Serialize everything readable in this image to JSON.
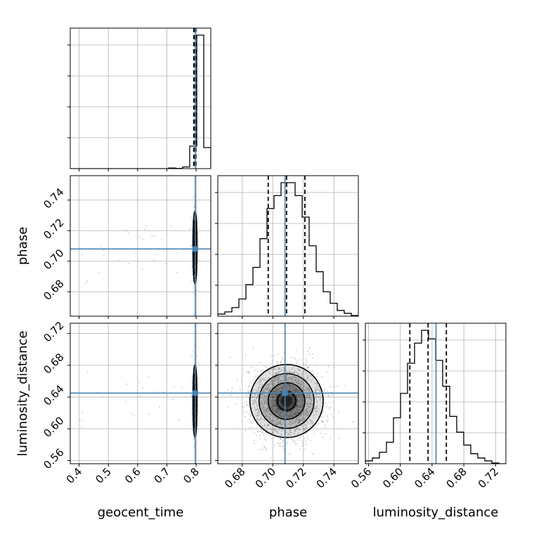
{
  "chart_data": {
    "type": "corner",
    "parameters": [
      "geocent_time",
      "phase",
      "luminosity_distance"
    ],
    "axis_labels": {
      "geocent_time": "geocent_time",
      "phase": "phase",
      "luminosity_distance": "luminosity_distance"
    },
    "ranges": {
      "geocent_time": [
        0.37,
        0.85
      ],
      "phase": [
        0.664,
        0.756
      ],
      "luminosity_distance": [
        0.556,
        0.733
      ]
    },
    "ticks": {
      "geocent_time": [
        0.4,
        0.5,
        0.6,
        0.7,
        0.8
      ],
      "phase": [
        0.68,
        0.7,
        0.72,
        0.74
      ],
      "luminosity_distance": [
        0.56,
        0.6,
        0.64,
        0.68,
        0.72
      ]
    },
    "tick_labels": {
      "geocent_time": [
        "0.4",
        "0.5",
        "0.6",
        "0.7",
        "0.8"
      ],
      "phase": [
        "0.68",
        "0.70",
        "0.72",
        "0.74"
      ],
      "luminosity_distance": [
        "0.56",
        "0.60",
        "0.64",
        "0.68",
        "0.72"
      ]
    },
    "truths": {
      "geocent_time": 0.797,
      "phase": 0.708,
      "luminosity_distance": 0.645
    },
    "quantiles": {
      "geocent_time": [
        0.792,
        0.796,
        0.799
      ],
      "phase": [
        0.697,
        0.709,
        0.721
      ],
      "luminosity_distance": [
        0.612,
        0.635,
        0.658
      ]
    },
    "histograms": {
      "geocent_time": {
        "edges": [
          0.37,
          0.394,
          0.418,
          0.442,
          0.466,
          0.49,
          0.514,
          0.538,
          0.562,
          0.586,
          0.61,
          0.634,
          0.658,
          0.682,
          0.706,
          0.73,
          0.754,
          0.778,
          0.802,
          0.826,
          0.85
        ],
        "counts": [
          0,
          0,
          0,
          0,
          0,
          0,
          0,
          0,
          0,
          0,
          0,
          0,
          0,
          0,
          0.004,
          0.002,
          0.012,
          0.16,
          0.95,
          0.15
        ]
      },
      "phase": {
        "edges": [
          0.664,
          0.6686,
          0.6732,
          0.6778,
          0.6824,
          0.687,
          0.6916,
          0.6962,
          0.7008,
          0.7054,
          0.71,
          0.7146,
          0.7192,
          0.7238,
          0.7284,
          0.733,
          0.7376,
          0.7422,
          0.7468,
          0.7514,
          0.756
        ],
        "counts": [
          0.015,
          0.03,
          0.06,
          0.12,
          0.22,
          0.34,
          0.54,
          0.75,
          0.84,
          0.93,
          0.93,
          0.84,
          0.69,
          0.49,
          0.31,
          0.17,
          0.09,
          0.04,
          0.02,
          0.005
        ]
      },
      "luminosity_distance": {
        "edges": [
          0.556,
          0.56485,
          0.5737,
          0.58255,
          0.5914,
          0.60025,
          0.6091,
          0.61795,
          0.6268,
          0.63565,
          0.6445,
          0.65335,
          0.6622,
          0.67105,
          0.6799,
          0.68875,
          0.6976,
          0.70645,
          0.7153,
          0.72415,
          0.733
        ],
        "counts": [
          0.02,
          0.04,
          0.08,
          0.15,
          0.32,
          0.49,
          0.7,
          0.84,
          0.93,
          0.87,
          0.72,
          0.54,
          0.33,
          0.22,
          0.13,
          0.07,
          0.04,
          0.02,
          0.005,
          0.0
        ]
      }
    },
    "grid": true,
    "colors": {
      "histogram": "#000000",
      "truth": "#4682b4",
      "quantile": "#000000",
      "scatter": "#9a9a9a",
      "grid": "#b0b0b0",
      "contour": "#000000"
    }
  }
}
